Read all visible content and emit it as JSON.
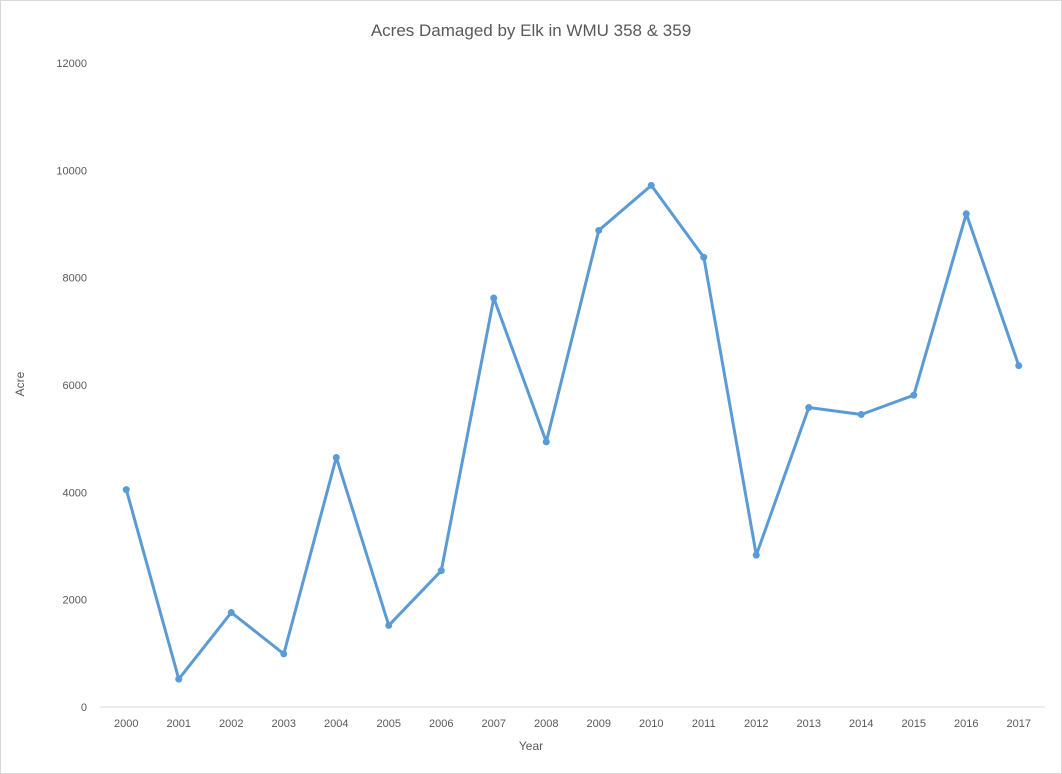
{
  "chart_data": {
    "type": "line",
    "title": "Acres Damaged by Elk in WMU 358 & 359",
    "xlabel": "Year",
    "ylabel": "Acre",
    "ylim": [
      0,
      12000
    ],
    "y_ticks": [
      0,
      2000,
      4000,
      6000,
      8000,
      10000,
      12000
    ],
    "grid": false,
    "legend": "none",
    "x": [
      "2000",
      "2001",
      "2002",
      "2003",
      "2004",
      "2005",
      "2006",
      "2007",
      "2008",
      "2009",
      "2010",
      "2011",
      "2012",
      "2013",
      "2014",
      "2015",
      "2016",
      "2017"
    ],
    "series": [
      {
        "color": "#5b9bd5",
        "values": [
          4050,
          520,
          1760,
          990,
          4650,
          1520,
          2540,
          7620,
          4940,
          8880,
          9720,
          8380,
          2830,
          5580,
          5450,
          5810,
          9190,
          6360
        ]
      }
    ]
  }
}
